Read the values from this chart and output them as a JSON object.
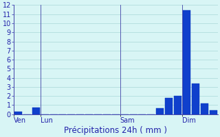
{
  "bar_values": [
    0.3,
    0.0,
    0.7,
    0.0,
    0.0,
    0.0,
    0.0,
    0.0,
    0.0,
    0.0,
    0.0,
    0.0,
    0.0,
    0.0,
    0.0,
    0.0,
    0.65,
    1.8,
    2.0,
    11.4,
    3.4,
    1.2,
    0.4
  ],
  "n_bars": 23,
  "xtick_positions": [
    0,
    3,
    12,
    19
  ],
  "xtick_labels": [
    "Ven",
    "Lun",
    "Sam",
    "Dim"
  ],
  "vline_positions": [
    0,
    3,
    12,
    19
  ],
  "xlabel": "Précipitations 24h ( mm )",
  "ylim": [
    0,
    12
  ],
  "yticks": [
    0,
    1,
    2,
    3,
    4,
    5,
    6,
    7,
    8,
    9,
    10,
    11,
    12
  ],
  "bar_color": "#1040cc",
  "bar_edge_color": "#0030bb",
  "background_color": "#d8f5f5",
  "grid_color": "#a8d8d8",
  "axis_color": "#4444aa",
  "text_color": "#2222aa",
  "xlabel_fontsize": 8.5,
  "tick_fontsize": 7,
  "bar_width": 0.85
}
